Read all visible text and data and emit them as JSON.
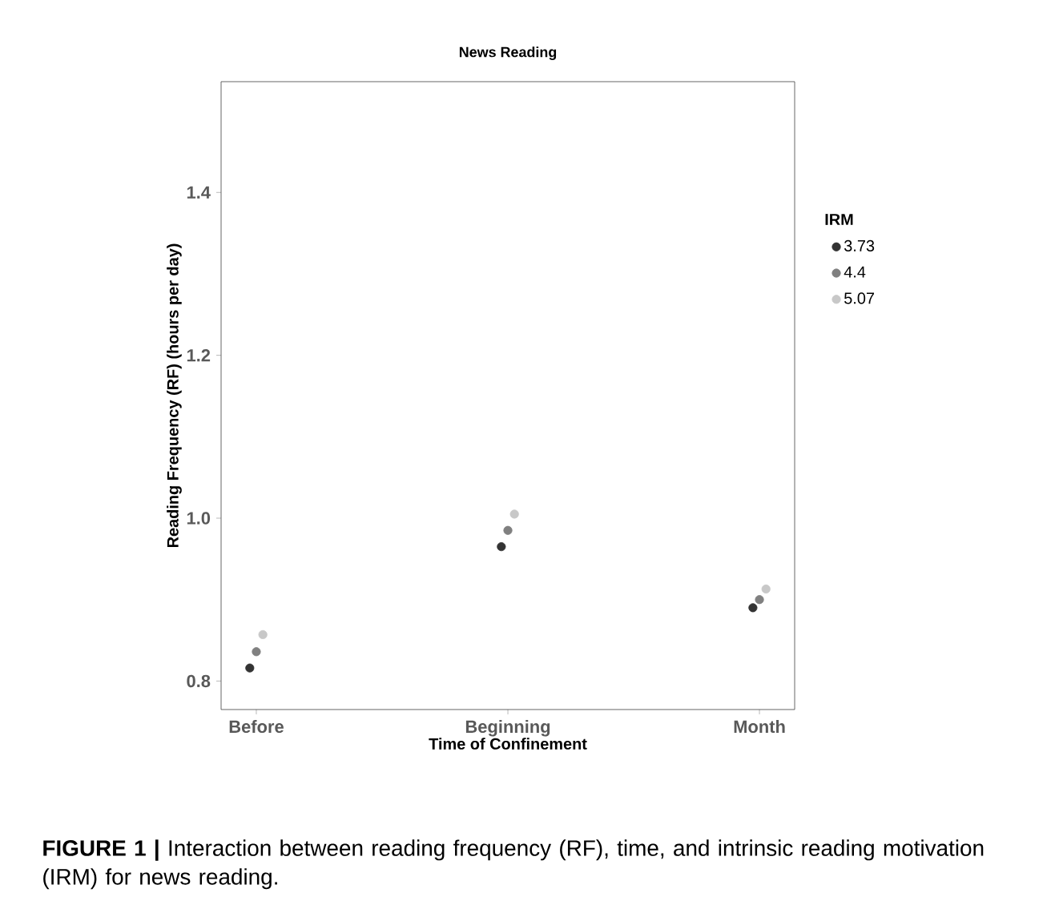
{
  "chart_data": {
    "type": "scatter",
    "title": "News Reading",
    "xlabel": "Time of Confinement",
    "ylabel": "Reading Frequency (RF) (hours per day)",
    "legend_title": "IRM",
    "categories": [
      "Before",
      "Beginning",
      "Month"
    ],
    "series": [
      {
        "name": "3.73",
        "color": "#333333",
        "values": [
          0.816,
          0.965,
          0.89
        ]
      },
      {
        "name": "4.4",
        "color": "#808080",
        "values": [
          0.836,
          0.985,
          0.9
        ]
      },
      {
        "name": "5.07",
        "color": "#c8c8c8",
        "values": [
          0.857,
          1.005,
          0.913
        ]
      }
    ],
    "ylim": [
      0.765,
      1.536
    ],
    "yticks": [
      0.8,
      {
        "value": 1.0,
        "label": "1.0"
      },
      1.2,
      1.4
    ],
    "legend": "right",
    "marker": "circle",
    "grid": false,
    "annotations": [
      "**FIGURE 1 |** Interaction between reading frequency (RF), time, and intrinsic reading motivation (IRM) for news reading."
    ]
  }
}
